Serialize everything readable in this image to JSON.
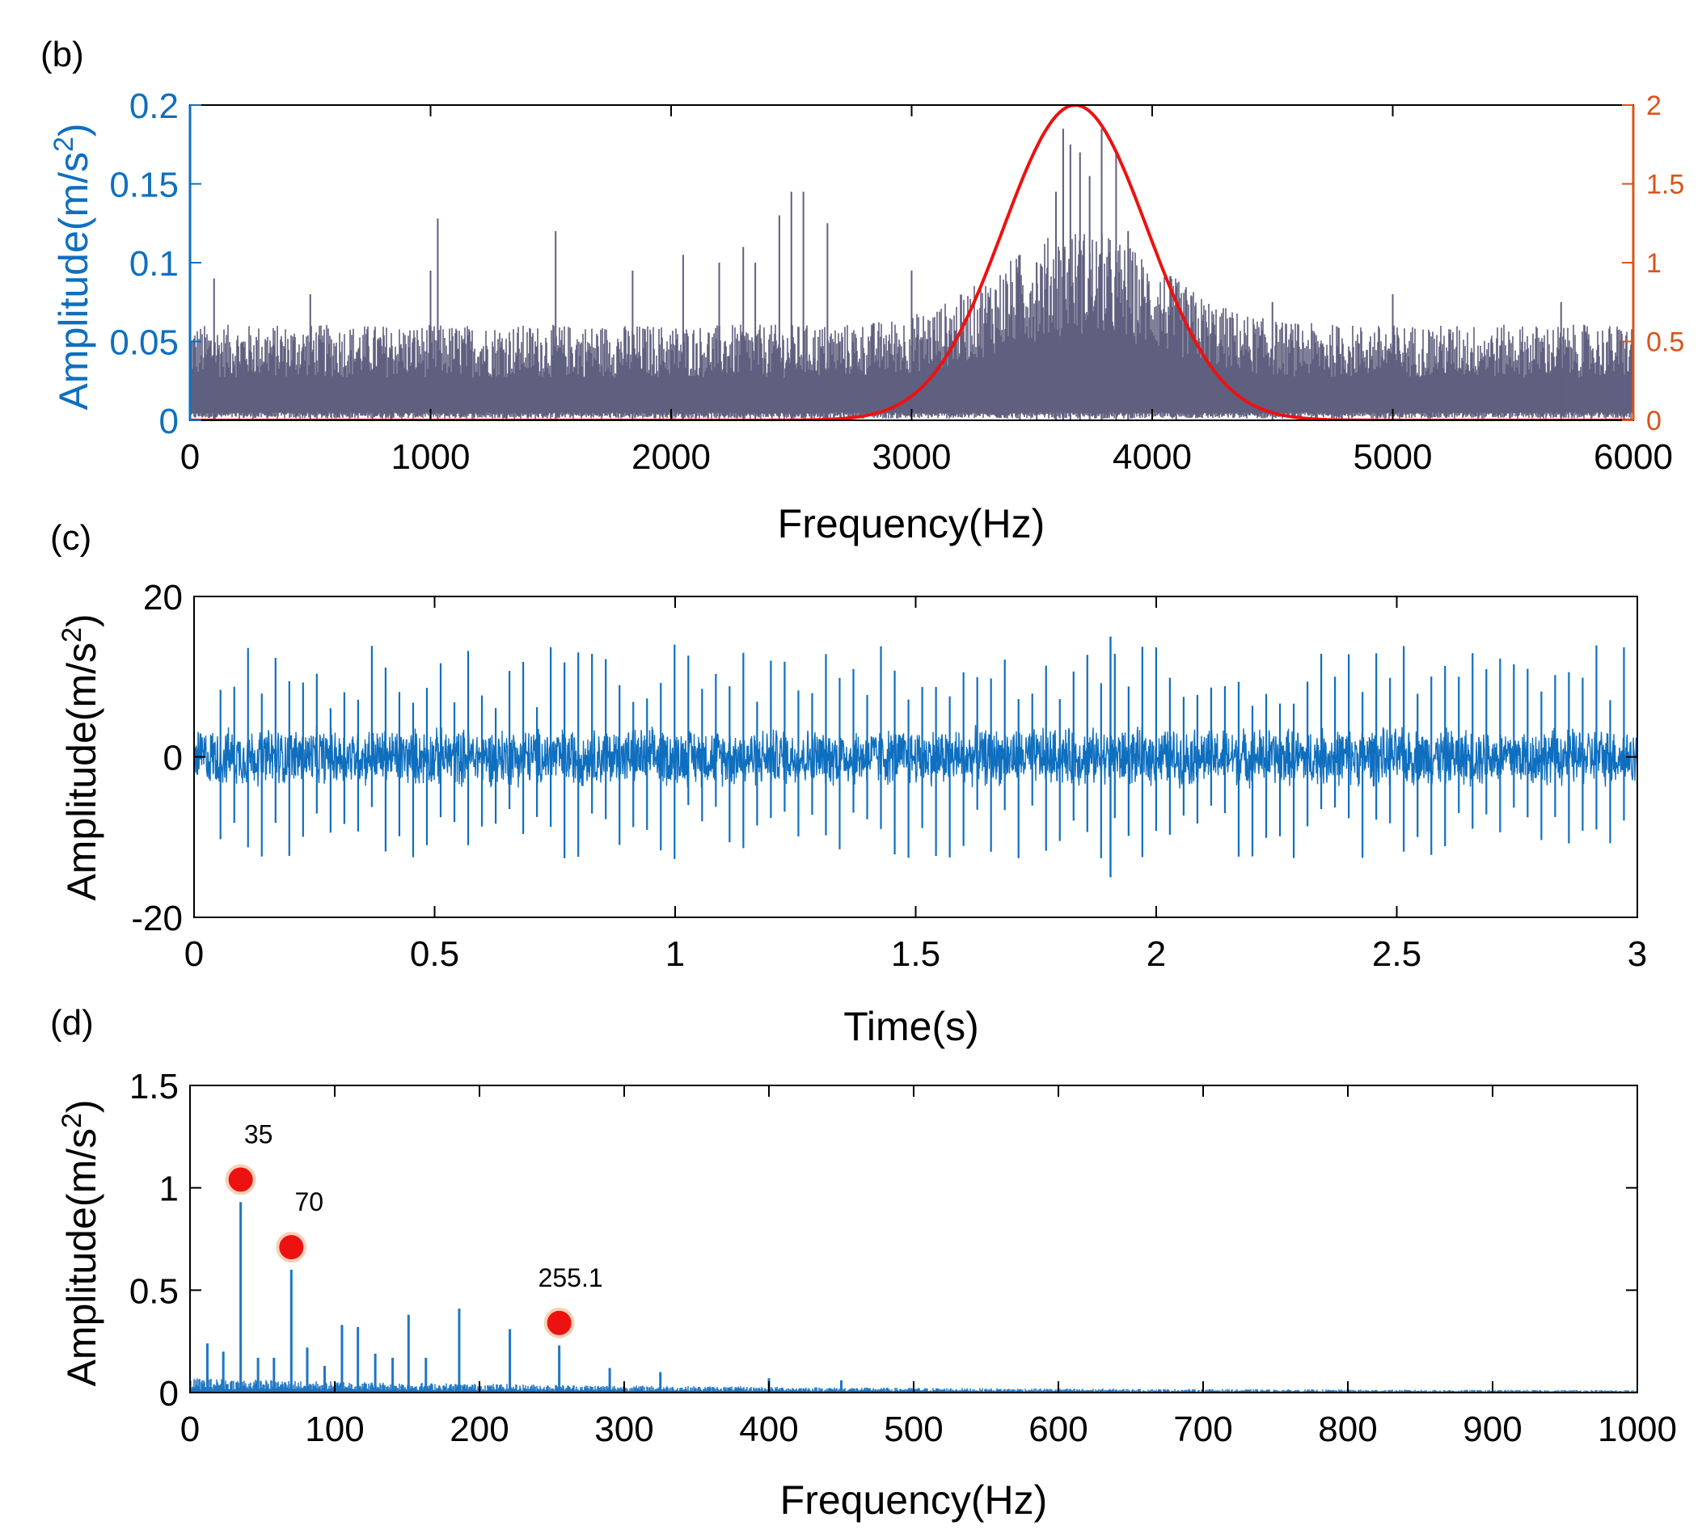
{
  "colors": {
    "spectrum": "#5f5f7f",
    "filter": "#ee1111",
    "signal": "#0f6fbf",
    "envelope": "#1f76c4",
    "left_axis_b": "#0f6fbf",
    "right_axis_b": "#d9541a",
    "marker_fill": "#ee1111",
    "marker_ring": "#f2d2b8",
    "axis": "#000000"
  },
  "panels": {
    "b": {
      "label": "(b)"
    },
    "c": {
      "label": "(c)"
    },
    "d": {
      "label": "(d)"
    }
  },
  "chart_data": [
    {
      "id": "b",
      "type": "line",
      "title": "",
      "xlabel": "Frequency(Hz)",
      "ylabel": "Amplitude(m/s2)",
      "ylabel_right": "",
      "xlim": [
        0,
        6000
      ],
      "ylim": [
        0,
        0.2
      ],
      "ylim_right": [
        0,
        2
      ],
      "xticks": [
        0,
        1000,
        2000,
        3000,
        4000,
        5000,
        6000
      ],
      "xtick_labels": [
        "0",
        "1000",
        "2000",
        "3000",
        "4000",
        "5000",
        "6000"
      ],
      "yticks": [
        0,
        0.05,
        0.1,
        0.15,
        0.2
      ],
      "ytick_labels": [
        "0",
        "0.05",
        "0.1",
        "0.15",
        "0.2"
      ],
      "yticks_right": [
        0,
        0.5,
        1,
        1.5,
        2
      ],
      "ytick_labels_right": [
        "0",
        "0.5",
        "1",
        "1.5",
        "2"
      ],
      "grid": false,
      "series": [
        {
          "kind": "spectrum",
          "axis": "left",
          "baseline_amplitude": 0.045,
          "band_center_hz": 3700,
          "band_amplitude": 0.09,
          "peaks": [
            {
              "x": 100,
              "y": 0.09
            },
            {
              "x": 500,
              "y": 0.08
            },
            {
              "x": 1000,
              "y": 0.095
            },
            {
              "x": 1030,
              "y": 0.128
            },
            {
              "x": 1520,
              "y": 0.12
            },
            {
              "x": 1840,
              "y": 0.095
            },
            {
              "x": 2050,
              "y": 0.105
            },
            {
              "x": 2200,
              "y": 0.1
            },
            {
              "x": 2300,
              "y": 0.11
            },
            {
              "x": 2350,
              "y": 0.1
            },
            {
              "x": 2450,
              "y": 0.13
            },
            {
              "x": 2500,
              "y": 0.145
            },
            {
              "x": 2550,
              "y": 0.145
            },
            {
              "x": 2650,
              "y": 0.125
            },
            {
              "x": 3000,
              "y": 0.095
            },
            {
              "x": 3450,
              "y": 0.105
            },
            {
              "x": 3520,
              "y": 0.1
            },
            {
              "x": 3600,
              "y": 0.145
            },
            {
              "x": 3630,
              "y": 0.185
            },
            {
              "x": 3660,
              "y": 0.175
            },
            {
              "x": 3700,
              "y": 0.17
            },
            {
              "x": 3740,
              "y": 0.155
            },
            {
              "x": 3790,
              "y": 0.185
            },
            {
              "x": 3850,
              "y": 0.17
            },
            {
              "x": 3900,
              "y": 0.12
            },
            {
              "x": 4100,
              "y": 0.085
            },
            {
              "x": 4500,
              "y": 0.075
            },
            {
              "x": 5000,
              "y": 0.08
            },
            {
              "x": 5700,
              "y": 0.075
            }
          ]
        },
        {
          "kind": "gaussian_filter",
          "axis": "right",
          "center_hz": 3680,
          "peak": 2.0,
          "sigma_hz": 300
        }
      ]
    },
    {
      "id": "c",
      "type": "line",
      "title": "",
      "xlabel": "Time(s)",
      "ylabel": "Amplitude(m/s2)",
      "xlim": [
        0,
        3
      ],
      "ylim": [
        -20,
        20
      ],
      "xticks": [
        0,
        0.5,
        1,
        1.5,
        2,
        2.5,
        3
      ],
      "xtick_labels": [
        "0",
        "0.5",
        "1",
        "1.5",
        "2",
        "2.5",
        "3"
      ],
      "yticks": [
        -20,
        0,
        20
      ],
      "ytick_labels": [
        "-20",
        "0",
        "20"
      ],
      "grid": false,
      "series": [
        {
          "kind": "impulse_signal",
          "noise_amplitude": 4,
          "impulse_period_s": 0.0286,
          "impulse_amplitude_range": [
            6,
            14
          ],
          "largest_impulse": {
            "x": 1.905,
            "y": 15
          }
        }
      ]
    },
    {
      "id": "d",
      "type": "line",
      "title": "",
      "xlabel": "Frequency(Hz)",
      "ylabel": "Amplitude(m/s2)",
      "xlim": [
        0,
        1000
      ],
      "ylim": [
        0,
        1.5
      ],
      "xticks": [
        0,
        100,
        200,
        300,
        400,
        500,
        600,
        700,
        800,
        900,
        1000
      ],
      "xtick_labels": [
        "0",
        "100",
        "200",
        "300",
        "400",
        "500",
        "600",
        "700",
        "800",
        "900",
        "1000"
      ],
      "yticks": [
        0,
        0.5,
        1,
        1.5
      ],
      "ytick_labels": [
        "0",
        "0.5",
        "1",
        "1.5"
      ],
      "grid": false,
      "series": [
        {
          "kind": "envelope_spectrum",
          "peaks": [
            {
              "x": 12,
              "y": 0.24
            },
            {
              "x": 23,
              "y": 0.2
            },
            {
              "x": 35,
              "y": 0.93
            },
            {
              "x": 47,
              "y": 0.17
            },
            {
              "x": 58,
              "y": 0.17
            },
            {
              "x": 70,
              "y": 0.6
            },
            {
              "x": 81,
              "y": 0.22
            },
            {
              "x": 93,
              "y": 0.13
            },
            {
              "x": 105,
              "y": 0.33
            },
            {
              "x": 116,
              "y": 0.32
            },
            {
              "x": 128,
              "y": 0.19
            },
            {
              "x": 140,
              "y": 0.17
            },
            {
              "x": 151,
              "y": 0.38
            },
            {
              "x": 163,
              "y": 0.17
            },
            {
              "x": 186,
              "y": 0.41
            },
            {
              "x": 221,
              "y": 0.31
            },
            {
              "x": 255.1,
              "y": 0.23
            },
            {
              "x": 290,
              "y": 0.12
            },
            {
              "x": 325,
              "y": 0.1
            },
            {
              "x": 400,
              "y": 0.07
            },
            {
              "x": 450,
              "y": 0.06
            }
          ]
        }
      ],
      "annotations": [
        {
          "x": 35,
          "y": 1.04,
          "text": "35"
        },
        {
          "x": 70,
          "y": 0.71,
          "text": "70"
        },
        {
          "x": 255.1,
          "y": 0.34,
          "text": "255.1"
        }
      ]
    }
  ]
}
